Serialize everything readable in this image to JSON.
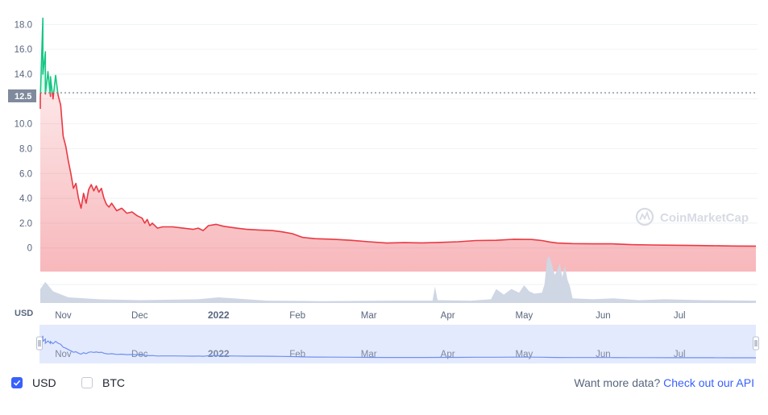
{
  "chart_data": {
    "type": "area",
    "y_ticks": [
      "0",
      "2.0",
      "4.0",
      "6.0",
      "8.0",
      "10.0",
      "12.0",
      "14.0",
      "16.0",
      "18.0"
    ],
    "ylim": [
      -1.9,
      18.8
    ],
    "x_ticks": [
      {
        "label": "Nov",
        "date": "2021-11-01"
      },
      {
        "label": "Dec",
        "date": "2021-12-01"
      },
      {
        "label": "2022",
        "date": "2022-01-01",
        "bold": true
      },
      {
        "label": "Feb",
        "date": "2022-02-01"
      },
      {
        "label": "Mar",
        "date": "2022-03-01"
      },
      {
        "label": "Apr",
        "date": "2022-04-01"
      },
      {
        "label": "May",
        "date": "2022-05-01"
      },
      {
        "label": "Jun",
        "date": "2022-06-01"
      },
      {
        "label": "Jul",
        "date": "2022-07-01"
      }
    ],
    "date_range": [
      "2021-10-23",
      "2022-07-31"
    ],
    "current_price": {
      "label": "12.5",
      "value": 12.5
    },
    "series": [
      {
        "currency": "USD",
        "up_color": "#16c784",
        "down_color": "#ea3943",
        "points": [
          [
            "2021-10-23",
            11.2
          ],
          [
            "2021-10-23",
            12.0
          ],
          [
            "2021-10-24",
            18.5
          ],
          [
            "2021-10-24",
            14.0
          ],
          [
            "2021-10-25",
            15.8
          ],
          [
            "2021-10-25",
            12.4
          ],
          [
            "2021-10-26",
            14.2
          ],
          [
            "2021-10-27",
            12.2
          ],
          [
            "2021-10-27",
            13.8
          ],
          [
            "2021-10-28",
            12.0
          ],
          [
            "2021-10-29",
            13.9
          ],
          [
            "2021-10-30",
            12.3
          ],
          [
            "2021-10-31",
            11.5
          ],
          [
            "2021-11-01",
            9.0
          ],
          [
            "2021-11-02",
            8.2
          ],
          [
            "2021-11-03",
            7.0
          ],
          [
            "2021-11-04",
            6.0
          ],
          [
            "2021-11-05",
            4.8
          ],
          [
            "2021-11-06",
            5.2
          ],
          [
            "2021-11-07",
            4.0
          ],
          [
            "2021-11-08",
            3.2
          ],
          [
            "2021-11-09",
            4.4
          ],
          [
            "2021-11-10",
            3.6
          ],
          [
            "2021-11-11",
            4.7
          ],
          [
            "2021-11-12",
            5.1
          ],
          [
            "2021-11-13",
            4.6
          ],
          [
            "2021-11-14",
            5.0
          ],
          [
            "2021-11-15",
            4.5
          ],
          [
            "2021-11-16",
            4.8
          ],
          [
            "2021-11-17",
            4.0
          ],
          [
            "2021-11-18",
            3.5
          ],
          [
            "2021-11-19",
            3.3
          ],
          [
            "2021-11-20",
            3.6
          ],
          [
            "2021-11-22",
            3.0
          ],
          [
            "2021-11-24",
            3.2
          ],
          [
            "2021-11-26",
            2.8
          ],
          [
            "2021-11-28",
            2.9
          ],
          [
            "2021-11-30",
            2.6
          ],
          [
            "2021-12-02",
            2.4
          ],
          [
            "2021-12-03",
            2.0
          ],
          [
            "2021-12-04",
            2.3
          ],
          [
            "2021-12-05",
            1.8
          ],
          [
            "2021-12-06",
            2.0
          ],
          [
            "2021-12-08",
            1.6
          ],
          [
            "2021-12-10",
            1.7
          ],
          [
            "2021-12-14",
            1.7
          ],
          [
            "2021-12-18",
            1.6
          ],
          [
            "2021-12-22",
            1.5
          ],
          [
            "2021-12-24",
            1.6
          ],
          [
            "2021-12-26",
            1.4
          ],
          [
            "2021-12-28",
            1.8
          ],
          [
            "2021-12-31",
            1.9
          ],
          [
            "2022-01-03",
            1.75
          ],
          [
            "2022-01-08",
            1.6
          ],
          [
            "2022-01-12",
            1.5
          ],
          [
            "2022-01-17",
            1.45
          ],
          [
            "2022-01-22",
            1.4
          ],
          [
            "2022-01-26",
            1.3
          ],
          [
            "2022-01-30",
            1.15
          ],
          [
            "2022-02-03",
            0.85
          ],
          [
            "2022-02-08",
            0.75
          ],
          [
            "2022-02-15",
            0.7
          ],
          [
            "2022-02-22",
            0.62
          ],
          [
            "2022-03-01",
            0.5
          ],
          [
            "2022-03-08",
            0.4
          ],
          [
            "2022-03-15",
            0.43
          ],
          [
            "2022-03-22",
            0.41
          ],
          [
            "2022-03-29",
            0.45
          ],
          [
            "2022-04-05",
            0.5
          ],
          [
            "2022-04-12",
            0.6
          ],
          [
            "2022-04-20",
            0.62
          ],
          [
            "2022-04-27",
            0.7
          ],
          [
            "2022-05-04",
            0.68
          ],
          [
            "2022-05-08",
            0.6
          ],
          [
            "2022-05-11",
            0.48
          ],
          [
            "2022-05-14",
            0.4
          ],
          [
            "2022-05-20",
            0.35
          ],
          [
            "2022-05-28",
            0.33
          ],
          [
            "2022-06-04",
            0.34
          ],
          [
            "2022-06-12",
            0.27
          ],
          [
            "2022-06-20",
            0.24
          ],
          [
            "2022-06-28",
            0.22
          ],
          [
            "2022-07-06",
            0.2
          ],
          [
            "2022-07-14",
            0.18
          ],
          [
            "2022-07-22",
            0.16
          ],
          [
            "2022-07-31",
            0.15
          ]
        ],
        "volume": [
          [
            "2021-10-23",
            0.3
          ],
          [
            "2021-10-25",
            0.45
          ],
          [
            "2021-10-28",
            0.25
          ],
          [
            "2021-11-03",
            0.12
          ],
          [
            "2021-11-15",
            0.08
          ],
          [
            "2021-12-01",
            0.06
          ],
          [
            "2021-12-24",
            0.08
          ],
          [
            "2022-01-01",
            0.12
          ],
          [
            "2022-01-20",
            0.05
          ],
          [
            "2022-02-10",
            0.04
          ],
          [
            "2022-03-10",
            0.05
          ],
          [
            "2022-03-26",
            0.05
          ],
          [
            "2022-03-27",
            0.35
          ],
          [
            "2022-03-28",
            0.06
          ],
          [
            "2022-04-10",
            0.05
          ],
          [
            "2022-04-18",
            0.08
          ],
          [
            "2022-04-20",
            0.3
          ],
          [
            "2022-04-23",
            0.18
          ],
          [
            "2022-04-26",
            0.3
          ],
          [
            "2022-04-29",
            0.22
          ],
          [
            "2022-05-01",
            0.38
          ],
          [
            "2022-05-03",
            0.25
          ],
          [
            "2022-05-05",
            0.2
          ],
          [
            "2022-05-08",
            0.22
          ],
          [
            "2022-05-09",
            0.4
          ],
          [
            "2022-05-10",
            0.95
          ],
          [
            "2022-05-11",
            1.0
          ],
          [
            "2022-05-12",
            0.8
          ],
          [
            "2022-05-13",
            0.6
          ],
          [
            "2022-05-14",
            0.7
          ],
          [
            "2022-05-15",
            0.85
          ],
          [
            "2022-05-16",
            0.55
          ],
          [
            "2022-05-17",
            0.8
          ],
          [
            "2022-05-18",
            0.5
          ],
          [
            "2022-05-19",
            0.35
          ],
          [
            "2022-05-20",
            0.1
          ],
          [
            "2022-05-28",
            0.08
          ],
          [
            "2022-06-05",
            0.1
          ],
          [
            "2022-06-15",
            0.06
          ],
          [
            "2022-06-25",
            0.08
          ],
          [
            "2022-07-10",
            0.06
          ],
          [
            "2022-07-31",
            0.05
          ]
        ]
      }
    ]
  },
  "watermark": "CoinMarketCap",
  "axis_currency_label": "USD",
  "footer": {
    "toggles": [
      {
        "label": "USD",
        "checked": true
      },
      {
        "label": "BTC",
        "checked": false
      }
    ],
    "cta_text": "Want more data? ",
    "cta_link": "Check out our API"
  },
  "colors": {
    "accent": "#3861fb",
    "up": "#16c784",
    "down": "#ea3943",
    "grid": "#eff2f5",
    "volume": "#cfd6e4",
    "navigator_bg": "#e3eafd",
    "navigator_line": "#6f8ff0"
  }
}
